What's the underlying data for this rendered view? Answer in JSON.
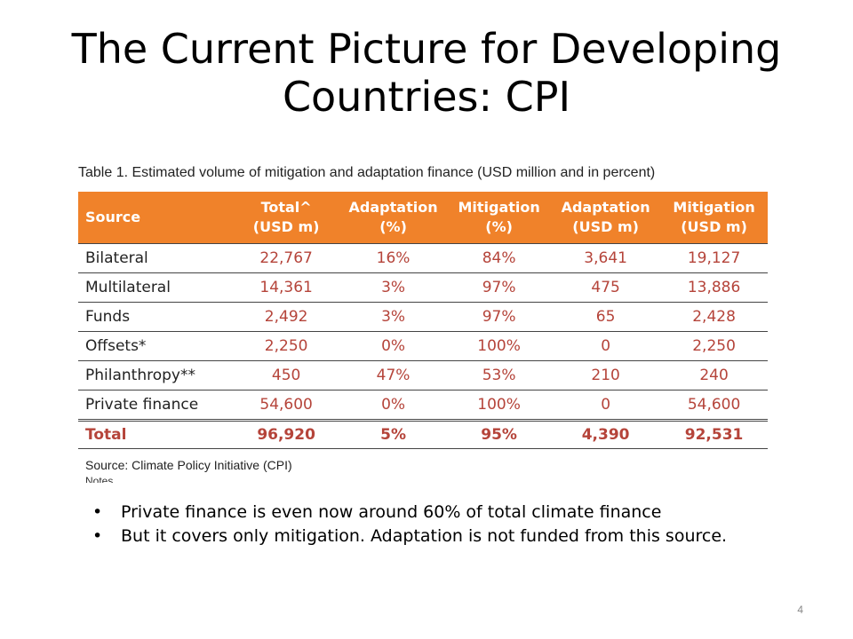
{
  "slide": {
    "title_line1": "The Current Picture for Developing",
    "title_line2": "Countries: CPI",
    "page_number": "4"
  },
  "table": {
    "caption": "Table 1. Estimated volume of mitigation and adaptation finance (USD million and in percent)",
    "headers": [
      [
        "Source",
        ""
      ],
      [
        "Total^",
        "(USD m)"
      ],
      [
        "Adaptation",
        "(%)"
      ],
      [
        "Mitigation",
        "(%)"
      ],
      [
        "Adaptation",
        "(USD m)"
      ],
      [
        "Mitigation",
        "(USD m)"
      ]
    ],
    "rows": [
      [
        "Bilateral",
        "22,767",
        "16%",
        "84%",
        "3,641",
        "19,127"
      ],
      [
        "Multilateral",
        "14,361",
        "3%",
        "97%",
        "475",
        "13,886"
      ],
      [
        "Funds",
        "2,492",
        "3%",
        "97%",
        "65",
        "2,428"
      ],
      [
        "Offsets*",
        "2,250",
        "0%",
        "100%",
        "0",
        "2,250"
      ],
      [
        "Philanthropy**",
        "450",
        "47%",
        "53%",
        "210",
        "240"
      ],
      [
        "Private finance",
        "54,600",
        "0%",
        "100%",
        "0",
        "54,600"
      ]
    ],
    "total": [
      "Total",
      "96,920",
      "5%",
      "95%",
      "4,390",
      "92,531"
    ],
    "source": "Source: Climate Policy Initiative (CPI)",
    "note": "Notes"
  },
  "bullets": [
    "Private finance is even now around 60% of total climate finance",
    "But it covers only mitigation.  Adaptation is not funded from this source."
  ],
  "colors": {
    "header_bg": "#f0822a",
    "value_text": "#b5443a"
  }
}
